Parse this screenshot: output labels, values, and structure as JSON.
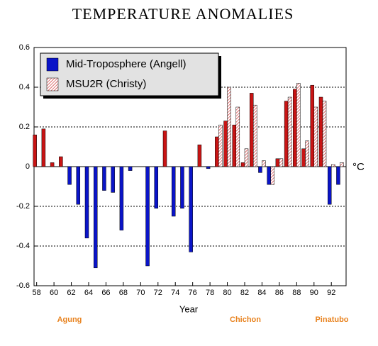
{
  "chart_data": {
    "type": "bar",
    "title": "TEMPERATURE ANOMALIES",
    "x_label": "Year",
    "y_unit": "°C",
    "x": [
      58,
      59,
      60,
      61,
      62,
      63,
      64,
      65,
      66,
      67,
      68,
      69,
      70,
      71,
      72,
      73,
      74,
      75,
      76,
      77,
      78,
      79,
      80,
      81,
      82,
      83,
      84,
      85,
      86,
      87,
      88,
      89,
      90,
      91,
      92,
      93
    ],
    "series": [
      {
        "name": "Mid-Troposphere (Angell)",
        "color": "#0a14c8",
        "positive_color": "#c81414",
        "values": [
          0.16,
          0.19,
          0.02,
          0.05,
          -0.09,
          -0.19,
          -0.36,
          -0.51,
          -0.12,
          -0.13,
          -0.32,
          -0.02,
          0,
          -0.5,
          -0.21,
          0.18,
          -0.25,
          -0.21,
          -0.43,
          0.11,
          -0.01,
          0.15,
          0.23,
          0.21,
          0.02,
          0.37,
          -0.03,
          -0.09,
          0.04,
          0.33,
          0.39,
          0.09,
          0.41,
          0.35,
          -0.19,
          -0.09
        ]
      },
      {
        "name": "MSU2R (Christy)",
        "color": "#c81414",
        "values": [
          null,
          null,
          null,
          null,
          null,
          null,
          null,
          null,
          null,
          null,
          null,
          null,
          null,
          null,
          null,
          null,
          null,
          null,
          null,
          null,
          null,
          0.21,
          0.4,
          0.3,
          0.09,
          0.31,
          0.03,
          -0.09,
          0.04,
          0.35,
          0.42,
          0.13,
          0.3,
          0.33,
          0.01,
          0.02
        ]
      }
    ],
    "xlim": [
      57.7,
      93.7
    ],
    "xticks": [
      58,
      60,
      62,
      64,
      66,
      68,
      70,
      72,
      74,
      76,
      78,
      80,
      82,
      84,
      86,
      88,
      90,
      92
    ],
    "ylim": [
      -0.6,
      0.6
    ],
    "yticks": [
      -0.6,
      -0.4,
      -0.2,
      0,
      0.2,
      0.4,
      0.6
    ],
    "grid": true,
    "legend": "top-left",
    "annotations": [
      "Agung",
      "Chichon",
      "Pinatubo"
    ],
    "annotation_color": "#e8821e"
  }
}
